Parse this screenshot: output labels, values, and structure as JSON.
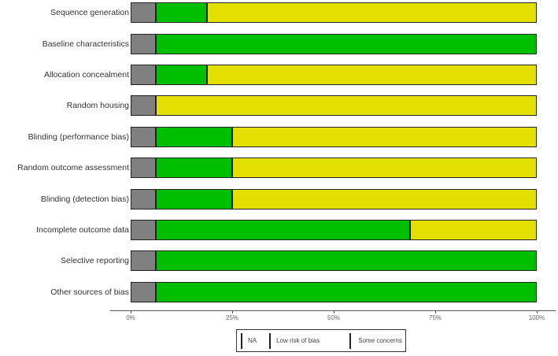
{
  "chart_data": {
    "type": "bar",
    "orientation": "horizontal",
    "stacked": true,
    "title": "",
    "xlabel": "",
    "ylabel": "",
    "xlim": [
      0,
      100
    ],
    "x_ticks": [
      "0%",
      "25%",
      "50%",
      "75%",
      "100%"
    ],
    "grid": false,
    "legend_position": "bottom",
    "categories": [
      "Sequence generation",
      "Baseline characteristics",
      "Allocation concealment",
      "Random housing",
      "Blinding (performance bias)",
      "Random outcome assessment",
      "Blinding (detection bias)",
      "Incomplete outcome data",
      "Selective reporting",
      "Other sources of bias"
    ],
    "series": [
      {
        "name": "NA",
        "color": "#808080",
        "values": [
          6.25,
          6.25,
          6.25,
          6.25,
          6.25,
          6.25,
          6.25,
          6.25,
          6.25,
          6.25
        ]
      },
      {
        "name": "Low risk of bias",
        "color": "#00bf00",
        "values": [
          12.5,
          93.75,
          12.5,
          0,
          18.75,
          18.75,
          18.75,
          62.5,
          93.75,
          93.75
        ]
      },
      {
        "name": "Some concerns",
        "color": "#e3df00",
        "values": [
          81.25,
          0,
          81.25,
          93.75,
          75,
          75,
          75,
          31.25,
          0,
          0
        ]
      }
    ]
  },
  "legend": {
    "items": [
      {
        "label": "NA",
        "color": "#808080"
      },
      {
        "label": "Low risk of bias",
        "color": "#00bf00"
      },
      {
        "label": "Some concerns",
        "color": "#e3df00"
      }
    ]
  }
}
